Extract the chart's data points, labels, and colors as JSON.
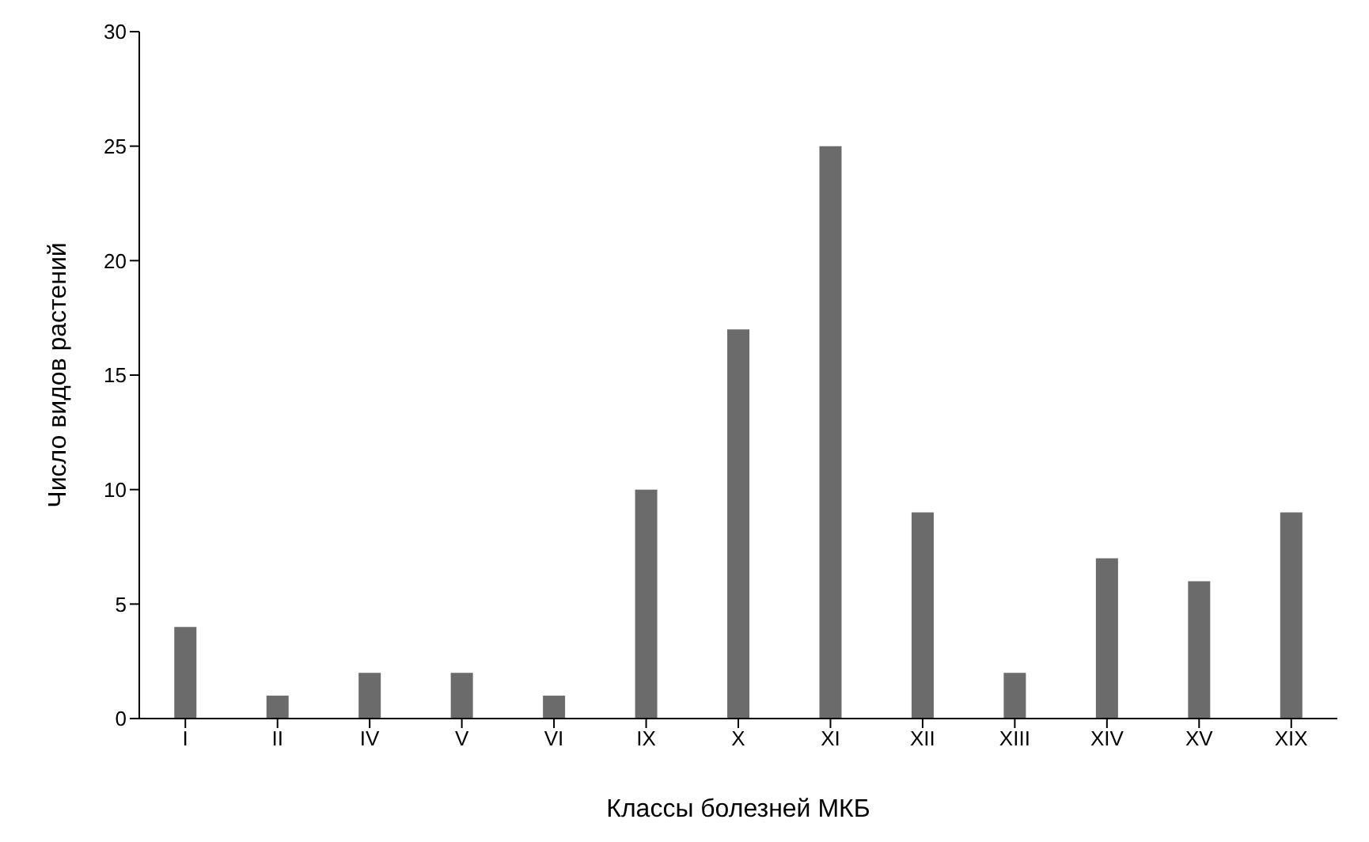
{
  "chart_data": {
    "type": "bar",
    "xlabel": "Классы болезней МКБ",
    "ylabel": "Число видов растений",
    "categories": [
      "I",
      "II",
      "IV",
      "V",
      "VI",
      "IX",
      "X",
      "XI",
      "XII",
      "XIII",
      "XIV",
      "XV",
      "XIX"
    ],
    "values": [
      4,
      1,
      2,
      2,
      1,
      10,
      17,
      25,
      9,
      2,
      7,
      6,
      9
    ],
    "color": "#6b6b6b",
    "ylim": [
      0,
      30
    ],
    "yticks": [
      0,
      5,
      10,
      15,
      20,
      25,
      30
    ],
    "grid": false,
    "legend": false
  }
}
